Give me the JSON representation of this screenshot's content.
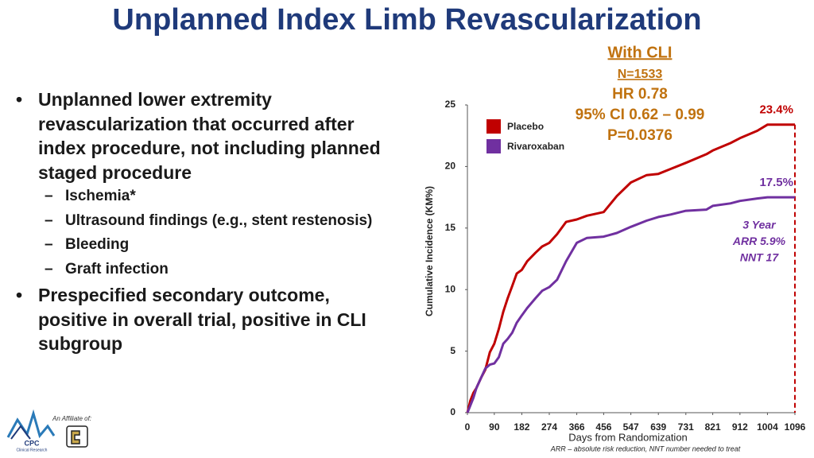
{
  "title": "Unplanned Index Limb Revascularization",
  "bullets": [
    {
      "text": "Unplanned lower extremity revascularization that occurred after index procedure, not including planned staged procedure",
      "sub": [
        "Ischemia*",
        "Ultrasound findings (e.g., stent restenosis)",
        "Bleeding",
        "Graft infection"
      ]
    },
    {
      "text": "Prespecified secondary outcome, positive in overall trial, positive in CLI subgroup"
    }
  ],
  "affiliate": "An Affiliate of:",
  "logo": {
    "name": "CPC",
    "sub": "Clinical Research"
  },
  "footnote": "ARR – absolute risk reduction, NNT number needed to treat",
  "chart_data": {
    "type": "line",
    "subgroup": "With CLI",
    "n": "N=1533",
    "stats": [
      "HR 0.78",
      "95% CI 0.62 – 0.99",
      "P=0.0376"
    ],
    "annotation": [
      "3 Year",
      "ARR 5.9%",
      "NNT 17"
    ],
    "x_label": "Days from Randomization",
    "y_label": "Cumulative Incidence (KM%)",
    "xlim": [
      0,
      1096
    ],
    "xticks": [
      0,
      90,
      182,
      274,
      366,
      456,
      547,
      639,
      731,
      821,
      912,
      1004,
      1096
    ],
    "ylim": [
      0,
      25
    ],
    "yticks": [
      0,
      5,
      10,
      15,
      20,
      25
    ],
    "grid": false,
    "x": [
      0,
      10,
      20,
      30,
      45,
      60,
      75,
      90,
      105,
      120,
      135,
      150,
      165,
      182,
      200,
      228,
      250,
      274,
      300,
      330,
      366,
      400,
      456,
      500,
      547,
      600,
      639,
      680,
      731,
      800,
      821,
      880,
      912,
      970,
      1004,
      1096
    ],
    "series": [
      {
        "name": "Placebo",
        "color": "#c00000",
        "values": [
          0,
          1.0,
          1.6,
          2.0,
          2.8,
          3.5,
          4.9,
          5.6,
          6.8,
          8.2,
          9.3,
          10.3,
          11.3,
          11.6,
          12.3,
          13.0,
          13.5,
          13.8,
          14.5,
          15.5,
          15.7,
          16.0,
          16.3,
          17.6,
          18.7,
          19.3,
          19.4,
          19.8,
          20.3,
          21.0,
          21.3,
          21.9,
          22.3,
          22.9,
          23.4,
          23.4
        ],
        "value_labels": [
          null,
          null,
          null,
          null,
          null,
          null,
          null,
          null,
          null,
          null,
          null,
          null,
          null,
          null,
          null,
          null,
          null,
          null,
          null,
          null,
          null,
          null,
          null,
          null,
          null,
          null,
          null,
          null,
          null,
          null,
          null,
          null,
          null,
          null,
          null,
          "23.4%"
        ]
      },
      {
        "name": "Rivaroxaban",
        "color": "#7030a0",
        "values": [
          0,
          0.6,
          1.2,
          2.0,
          2.8,
          3.6,
          3.9,
          4.0,
          4.5,
          5.6,
          6.0,
          6.5,
          7.3,
          7.9,
          8.5,
          9.3,
          9.9,
          10.2,
          10.8,
          12.3,
          13.8,
          14.2,
          14.3,
          14.6,
          15.1,
          15.6,
          15.9,
          16.1,
          16.4,
          16.5,
          16.8,
          17.0,
          17.2,
          17.4,
          17.5,
          17.5
        ],
        "value_labels": [
          null,
          null,
          null,
          null,
          null,
          null,
          null,
          null,
          null,
          null,
          null,
          null,
          null,
          null,
          null,
          null,
          null,
          null,
          null,
          null,
          null,
          null,
          null,
          null,
          null,
          null,
          null,
          null,
          null,
          null,
          null,
          null,
          null,
          null,
          null,
          "17.5%"
        ]
      }
    ]
  }
}
